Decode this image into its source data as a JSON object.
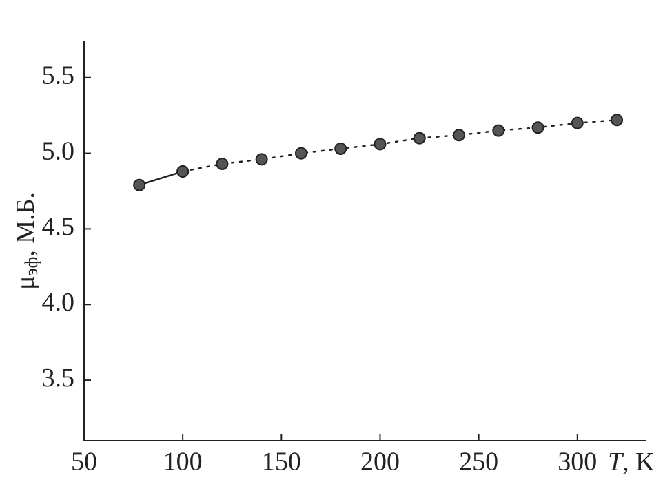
{
  "chart_data": {
    "type": "line",
    "x_label": [
      "T",
      ", K"
    ],
    "y_label": [
      "μ",
      "эф",
      ", М.Б."
    ],
    "series": [
      {
        "color": "#222222",
        "dash": "solid",
        "x": [
          78,
          100
        ],
        "values": [
          4.79,
          4.88
        ]
      },
      {
        "color": "#222222",
        "dash": "dotted",
        "x": [
          100,
          120,
          140,
          160,
          180,
          200,
          220,
          240,
          260,
          280,
          300,
          320
        ],
        "values": [
          4.88,
          4.93,
          4.96,
          5.0,
          5.03,
          5.06,
          5.1,
          5.12,
          5.15,
          5.17,
          5.2,
          5.22
        ]
      }
    ],
    "marker_color": "#555555",
    "xlim": [
      50,
      335
    ],
    "xticks": [
      50,
      100,
      150,
      200,
      250,
      300
    ],
    "ylim": [
      3.1,
      5.74
    ],
    "yticks": [
      {
        "value": 3.5,
        "label": "3.5"
      },
      {
        "value": 4,
        "label": "4.0"
      },
      {
        "value": 4.5,
        "label": "4.5"
      },
      {
        "value": 5,
        "label": "5.0"
      },
      {
        "value": 5.5,
        "label": "5.5"
      }
    ]
  }
}
